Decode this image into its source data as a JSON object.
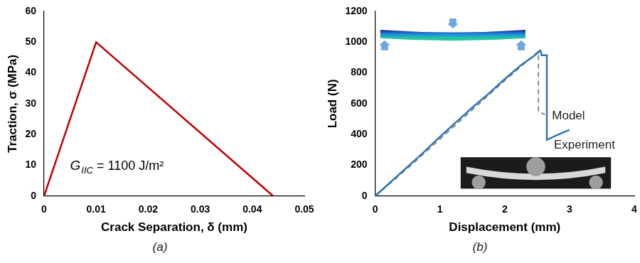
{
  "chart_data": [
    {
      "type": "line",
      "caption": "(a)",
      "x_label": "Crack Separation, δ (mm)",
      "y_label": "Traction, σ (MPa)",
      "x": [
        0,
        0.01,
        0.044
      ],
      "values": [
        0,
        50,
        0
      ],
      "color": "#c00000",
      "xlim": [
        0,
        0.05
      ],
      "xticks": [
        0,
        0.01,
        0.02,
        0.03,
        0.04,
        0.05
      ],
      "ylim": [
        0,
        60
      ],
      "yticks": [
        0,
        10,
        20,
        30,
        40,
        50,
        60
      ],
      "grid": false,
      "annotation": {
        "symbol": "G",
        "subscript": "IIC",
        "text": " = 1100 J/m²"
      }
    },
    {
      "type": "line",
      "caption": "(b)",
      "x_label": "Displacement (mm)",
      "y_label": "Load (N)",
      "series": [
        {
          "name": "Experiment",
          "color": "#2e75b6",
          "line_style": "solid",
          "x": [
            0,
            0.25,
            0.5,
            0.75,
            1.0,
            1.25,
            1.5,
            1.75,
            2.0,
            2.25,
            2.45,
            2.55,
            2.57,
            2.65,
            2.65,
            2.8,
            3.0
          ],
          "values": [
            0,
            95,
            190,
            285,
            385,
            480,
            575,
            665,
            760,
            850,
            910,
            945,
            915,
            915,
            365,
            395,
            430
          ]
        },
        {
          "name": "Model",
          "color": "#8c8c8c",
          "line_style": "dashed",
          "x": [
            0,
            0.5,
            1.0,
            1.5,
            2.0,
            2.3,
            2.52,
            2.52,
            2.62
          ],
          "values": [
            0,
            180,
            370,
            560,
            750,
            860,
            940,
            550,
            530
          ]
        }
      ],
      "xlim": [
        0,
        4
      ],
      "xticks": [
        0,
        1,
        2,
        3,
        4
      ],
      "ylim": [
        0,
        1200
      ],
      "yticks": [
        0,
        200,
        400,
        600,
        800,
        1000,
        1200
      ],
      "grid": false
    }
  ]
}
